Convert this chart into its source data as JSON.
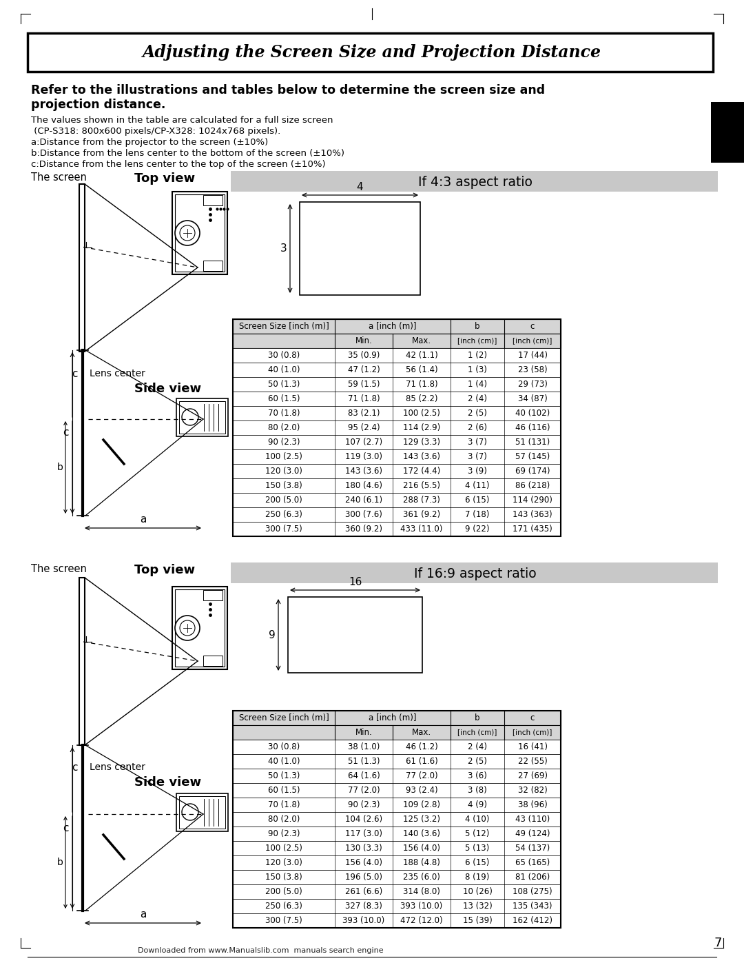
{
  "title": "Adjusting the Screen Size and Projection Distance",
  "subtitle_bold": "Refer to the illustrations and tables below to determine the screen size and\nprojection distance.",
  "description_lines": [
    "The values shown in the table are calculated for a full size screen",
    " (CP-S318: 800x600 pixels/CP-X328: 1024x768 pixels).",
    "a:Distance from the projector to the screen (±10%)",
    "b:Distance from the lens center to the bottom of the screen (±10%)",
    "c:Distance from the lens center to the top of the screen (±10%)"
  ],
  "section1_label": "If 4:3 aspect ratio",
  "section2_label": "If 16:9 aspect ratio",
  "the_screen_label": "The screen",
  "top_view_label": "Top view",
  "side_view_label": "Side view",
  "lens_center_label": "Lens center",
  "table1_data": [
    [
      "30 (0.8)",
      "35 (0.9)",
      "42 (1.1)",
      "1 (2)",
      "17 (44)"
    ],
    [
      "40 (1.0)",
      "47 (1.2)",
      "56 (1.4)",
      "1 (3)",
      "23 (58)"
    ],
    [
      "50 (1.3)",
      "59 (1.5)",
      "71 (1.8)",
      "1 (4)",
      "29 (73)"
    ],
    [
      "60 (1.5)",
      "71 (1.8)",
      "85 (2.2)",
      "2 (4)",
      "34 (87)"
    ],
    [
      "70 (1.8)",
      "83 (2.1)",
      "100 (2.5)",
      "2 (5)",
      "40 (102)"
    ],
    [
      "80 (2.0)",
      "95 (2.4)",
      "114 (2.9)",
      "2 (6)",
      "46 (116)"
    ],
    [
      "90 (2.3)",
      "107 (2.7)",
      "129 (3.3)",
      "3 (7)",
      "51 (131)"
    ],
    [
      "100 (2.5)",
      "119 (3.0)",
      "143 (3.6)",
      "3 (7)",
      "57 (145)"
    ],
    [
      "120 (3.0)",
      "143 (3.6)",
      "172 (4.4)",
      "3 (9)",
      "69 (174)"
    ],
    [
      "150 (3.8)",
      "180 (4.6)",
      "216 (5.5)",
      "4 (11)",
      "86 (218)"
    ],
    [
      "200 (5.0)",
      "240 (6.1)",
      "288 (7.3)",
      "6 (15)",
      "114 (290)"
    ],
    [
      "250 (6.3)",
      "300 (7.6)",
      "361 (9.2)",
      "7 (18)",
      "143 (363)"
    ],
    [
      "300 (7.5)",
      "360 (9.2)",
      "433 (11.0)",
      "9 (22)",
      "171 (435)"
    ]
  ],
  "table2_data": [
    [
      "30 (0.8)",
      "38 (1.0)",
      "46 (1.2)",
      "2 (4)",
      "16 (41)"
    ],
    [
      "40 (1.0)",
      "51 (1.3)",
      "61 (1.6)",
      "2 (5)",
      "22 (55)"
    ],
    [
      "50 (1.3)",
      "64 (1.6)",
      "77 (2.0)",
      "3 (6)",
      "27 (69)"
    ],
    [
      "60 (1.5)",
      "77 (2.0)",
      "93 (2.4)",
      "3 (8)",
      "32 (82)"
    ],
    [
      "70 (1.8)",
      "90 (2.3)",
      "109 (2.8)",
      "4 (9)",
      "38 (96)"
    ],
    [
      "80 (2.0)",
      "104 (2.6)",
      "125 (3.2)",
      "4 (10)",
      "43 (110)"
    ],
    [
      "90 (2.3)",
      "117 (3.0)",
      "140 (3.6)",
      "5 (12)",
      "49 (124)"
    ],
    [
      "100 (2.5)",
      "130 (3.3)",
      "156 (4.0)",
      "5 (13)",
      "54 (137)"
    ],
    [
      "120 (3.0)",
      "156 (4.0)",
      "188 (4.8)",
      "6 (15)",
      "65 (165)"
    ],
    [
      "150 (3.8)",
      "196 (5.0)",
      "235 (6.0)",
      "8 (19)",
      "81 (206)"
    ],
    [
      "200 (5.0)",
      "261 (6.6)",
      "314 (8.0)",
      "10 (26)",
      "108 (275)"
    ],
    [
      "250 (6.3)",
      "327 (8.3)",
      "393 (10.0)",
      "13 (32)",
      "135 (343)"
    ],
    [
      "300 (7.5)",
      "393 (10.0)",
      "472 (12.0)",
      "15 (39)",
      "162 (412)"
    ]
  ],
  "bg_color": "#ffffff",
  "page_number": "7",
  "footer_text": "Downloaded from www.Manualslib.com  manuals search engine"
}
